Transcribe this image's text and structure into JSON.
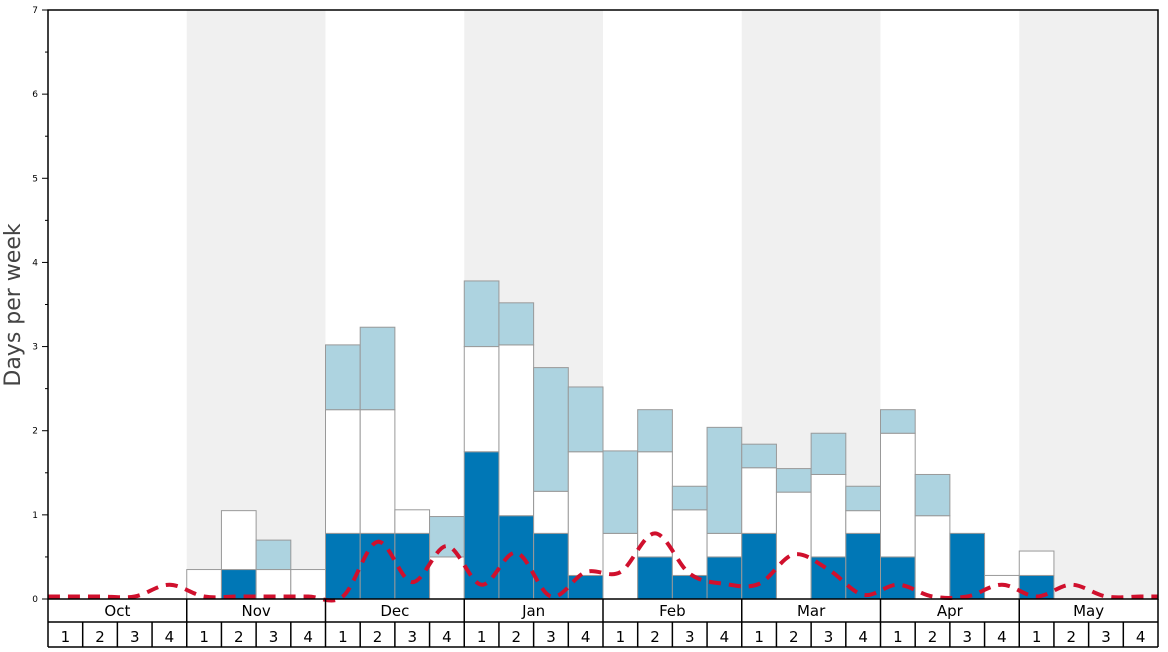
{
  "chart_data": {
    "type": "bar",
    "ylabel": "Days per week",
    "ylim": [
      0,
      7
    ],
    "y_ticks": [
      "0",
      "1",
      "2",
      "3",
      "4",
      "5",
      "6",
      "7"
    ],
    "months": [
      "Oct",
      "Nov",
      "Dec",
      "Jan",
      "Feb",
      "Mar",
      "Apr",
      "May"
    ],
    "week_labels": [
      "1",
      "2",
      "3",
      "4"
    ],
    "grid": false,
    "colors": {
      "dark_segment": "#0077b6",
      "white_segment": "#ffffff",
      "light_segment": "#add3e0",
      "average_line": "#d0102d",
      "band_shade": "#f0f0f0",
      "segment_border": "#999999"
    },
    "series": [
      {
        "values": [
          0,
          0,
          0,
          0,
          0,
          0.35,
          0,
          0,
          0.78,
          0.78,
          0.78,
          0,
          1.75,
          0.99,
          0.78,
          0.28,
          0,
          0.5,
          0.28,
          0.5,
          0.78,
          0,
          0.5,
          0.78,
          0.5,
          0,
          0.78,
          0,
          0.28,
          0,
          0,
          0
        ]
      },
      {
        "values": [
          0,
          0,
          0,
          0,
          0.35,
          0.7,
          0.35,
          0.35,
          1.47,
          1.47,
          0.28,
          0.5,
          1.25,
          2.03,
          0.5,
          1.47,
          0.78,
          1.25,
          0.78,
          0.28,
          0.78,
          1.27,
          0.98,
          0.27,
          1.47,
          0.99,
          0,
          0.28,
          0.29,
          0,
          0,
          0
        ]
      },
      {
        "values": [
          0,
          0,
          0,
          0,
          0,
          0,
          0.35,
          0,
          0.77,
          0.98,
          0,
          0.48,
          0.78,
          0.5,
          1.47,
          0.77,
          0.98,
          0.5,
          0.28,
          1.26,
          0.28,
          0.28,
          0.49,
          0.29,
          0.28,
          0.49,
          0,
          0,
          0,
          0,
          0,
          0
        ]
      },
      {
        "type": "line",
        "values": [
          0.03,
          0.03,
          0.03,
          0.17,
          0.03,
          0.03,
          0.03,
          0.03,
          0.03,
          0.68,
          0.2,
          0.63,
          0.17,
          0.55,
          0.03,
          0.32,
          0.32,
          0.78,
          0.3,
          0.18,
          0.18,
          0.53,
          0.35,
          0.05,
          0.17,
          0.03,
          0.03,
          0.17,
          0.03,
          0.17,
          0.03,
          0.03
        ]
      }
    ]
  }
}
